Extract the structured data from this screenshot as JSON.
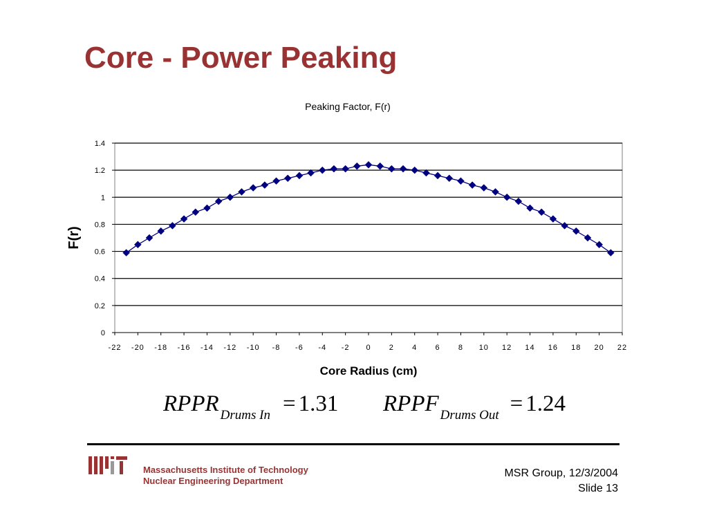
{
  "slide": {
    "title": "Core - Power Peaking"
  },
  "chart_data": {
    "type": "line",
    "title": "Peaking Factor, F(r)",
    "xlabel": "Core Radius (cm)",
    "ylabel": "F(r)",
    "xlim": [
      -22,
      22
    ],
    "ylim": [
      0,
      1.4
    ],
    "x_ticks": [
      -22,
      -20,
      -18,
      -16,
      -14,
      -12,
      -10,
      -8,
      -6,
      -4,
      -2,
      0,
      2,
      4,
      6,
      8,
      10,
      12,
      14,
      16,
      18,
      20,
      22
    ],
    "y_ticks": [
      0,
      0.2,
      0.4,
      0.6,
      0.8,
      1,
      1.2,
      1.4
    ],
    "x_tick_labels": [
      "-22",
      "-20",
      "-18",
      "-16",
      "-14",
      "-12",
      "-10",
      "-8",
      "-6",
      "-4",
      "-2",
      "0",
      "2",
      "4",
      "6",
      "8",
      "10",
      "12",
      "14",
      "16",
      "18",
      "20",
      "22"
    ],
    "y_tick_labels": [
      "0",
      "0.2",
      "0.4",
      "0.6",
      "0.8",
      "1",
      "1.2",
      "1.4"
    ],
    "grid": "horizontal",
    "legend": "none",
    "series": [
      {
        "color": "#000080",
        "marker": "diamond",
        "x": [
          -21,
          -20,
          -19,
          -18,
          -17,
          -16,
          -15,
          -14,
          -13,
          -12,
          -11,
          -10,
          -9,
          -8,
          -7,
          -6,
          -5,
          -4,
          -3,
          -2,
          -1,
          0,
          1,
          2,
          3,
          4,
          5,
          6,
          7,
          8,
          9,
          10,
          11,
          12,
          13,
          14,
          15,
          16,
          17,
          18,
          19,
          20,
          21
        ],
        "y": [
          0.59,
          0.65,
          0.7,
          0.75,
          0.79,
          0.84,
          0.89,
          0.92,
          0.97,
          1.0,
          1.04,
          1.07,
          1.09,
          1.12,
          1.14,
          1.16,
          1.18,
          1.2,
          1.21,
          1.21,
          1.23,
          1.24,
          1.23,
          1.21,
          1.21,
          1.2,
          1.18,
          1.16,
          1.14,
          1.12,
          1.09,
          1.07,
          1.04,
          1.0,
          0.97,
          0.92,
          0.89,
          0.84,
          0.79,
          0.75,
          0.7,
          0.65,
          0.59
        ]
      }
    ]
  },
  "equations": {
    "left": {
      "main": "RPPR",
      "sub": "Drums In",
      "eq": "=",
      "value": "1.31"
    },
    "right": {
      "main": "RPPF",
      "sub": "Drums Out",
      "eq": "=",
      "value": "1.24"
    }
  },
  "footer": {
    "institute_line1": "Massachusetts Institute of Technology",
    "institute_line2": "Nuclear Engineering Department",
    "group_date": "MSR Group, 12/3/2004",
    "slide_number": "Slide 13"
  },
  "colors": {
    "title": "#993333",
    "series": "#000080",
    "mit_logo": "#993333"
  }
}
